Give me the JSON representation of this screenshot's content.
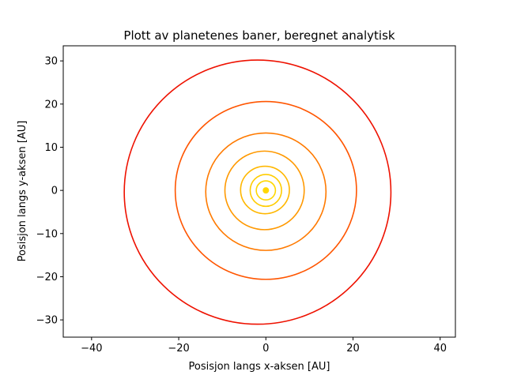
{
  "chart_data": {
    "type": "line",
    "title": "Plott av planetenes baner, beregnet analytisk",
    "xlabel": "Posisjon langs x-aksen [AU]",
    "ylabel": "Posisjon langs y-aksen [AU]",
    "xlim": [
      -46.5,
      43.5
    ],
    "ylim": [
      -34.0,
      33.5
    ],
    "xticks": [
      -40,
      -20,
      0,
      20,
      40
    ],
    "yticks": [
      -30,
      -20,
      -10,
      0,
      10,
      20,
      30
    ],
    "xtick_labels": [
      "−40",
      "−20",
      "0",
      "20",
      "40"
    ],
    "ytick_labels": [
      "−30",
      "−20",
      "−10",
      "0",
      "10",
      "20",
      "30"
    ],
    "grid": false,
    "legend": "none",
    "star": {
      "x": 0,
      "y": 0,
      "color": "#ffd700"
    },
    "orbits": [
      {
        "cx": 0.0,
        "cy": 0.0,
        "rx": 2.2,
        "ry": 2.2,
        "color": "#ffd700"
      },
      {
        "cx": 0.0,
        "cy": 0.0,
        "rx": 3.6,
        "ry": 3.7,
        "color": "#ffcc00"
      },
      {
        "cx": -0.2,
        "cy": 0.1,
        "rx": 5.6,
        "ry": 5.5,
        "color": "#ffb700"
      },
      {
        "cx": -0.3,
        "cy": 0.0,
        "rx": 9.1,
        "ry": 9.1,
        "color": "#ff9900"
      },
      {
        "cx": 0.0,
        "cy": -0.3,
        "rx": 13.8,
        "ry": 13.6,
        "color": "#ff7a00"
      },
      {
        "cx": 0.0,
        "cy": 0.0,
        "rx": 20.8,
        "ry": 20.6,
        "color": "#ff5500"
      },
      {
        "cx": -1.9,
        "cy": -0.4,
        "rx": 30.6,
        "ry": 30.6,
        "color": "#ee1100"
      }
    ]
  }
}
